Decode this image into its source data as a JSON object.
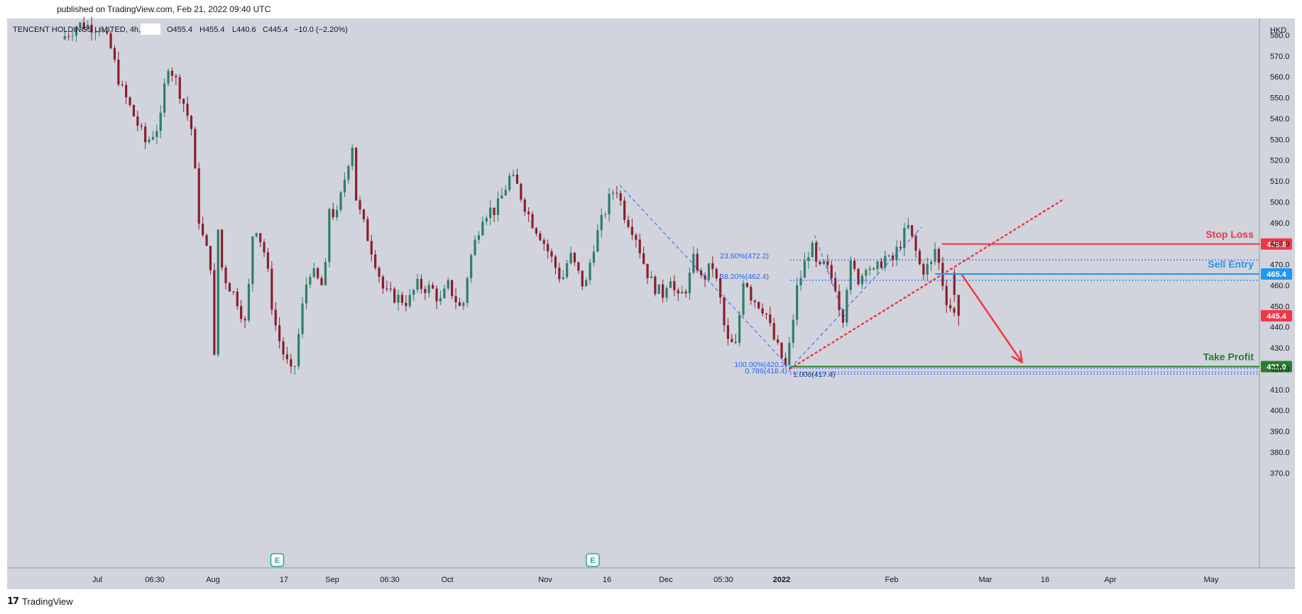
{
  "header": {
    "published": "published on TradingView.com, Feb 21, 2022 09:40 UTC"
  },
  "legend": {
    "symbol": "TENCENT HOLDINGS LIMITED, 4h,",
    "open": "O455.4",
    "high": "H455.4",
    "low": "L440.6",
    "close": "C445.4",
    "change": "−10.0 (−2.20%)"
  },
  "footer": {
    "brand": "TradingView",
    "logo": "tv-logo-icon"
  },
  "colors": {
    "background": "#d1d4dc",
    "up_candle": "#2e7d6a",
    "down_candle": "#8b1e2b",
    "stop_loss": "#f23645",
    "sell_entry": "#2196f3",
    "take_profit": "#26802a",
    "fib": "#2962ff",
    "price_label": "#f23645"
  },
  "chart_data": {
    "type": "candlestick",
    "title": "TENCENT HOLDINGS LIMITED, 4h",
    "currency": "HKD",
    "interval": "4h",
    "ylim": [
      364,
      588
    ],
    "y_ticks": [
      580.0,
      570.0,
      560.0,
      550.0,
      540.0,
      530.0,
      520.0,
      510.0,
      500.0,
      490.0,
      480.0,
      470.0,
      460.0,
      450.0,
      440.0,
      430.0,
      420.0,
      410.0,
      400.0,
      390.0,
      380.0,
      370.0
    ],
    "x_ticks": [
      "Jul",
      "06:30",
      "Aug",
      "17",
      "Sep",
      "06:30",
      "Oct",
      "Nov",
      "16",
      "Dec",
      "05:30",
      "2022",
      "Feb",
      "Mar",
      "16",
      "Apr",
      "May"
    ],
    "price_path": [
      {
        "date": "2021-06-25",
        "price": 578
      },
      {
        "date": "2021-06-28",
        "price": 585
      },
      {
        "date": "2021-07-02",
        "price": 584
      },
      {
        "date": "2021-07-05",
        "price": 575
      },
      {
        "date": "2021-07-08",
        "price": 555
      },
      {
        "date": "2021-07-12",
        "price": 540
      },
      {
        "date": "2021-07-15",
        "price": 528
      },
      {
        "date": "2021-07-19",
        "price": 538
      },
      {
        "date": "2021-07-21",
        "price": 567
      },
      {
        "date": "2021-07-23",
        "price": 560
      },
      {
        "date": "2021-07-26",
        "price": 545
      },
      {
        "date": "2021-07-28",
        "price": 533
      },
      {
        "date": "2021-07-29",
        "price": 505
      },
      {
        "date": "2021-07-30",
        "price": 488
      },
      {
        "date": "2021-08-02",
        "price": 470
      },
      {
        "date": "2021-08-03",
        "price": 422
      },
      {
        "date": "2021-08-04",
        "price": 492
      },
      {
        "date": "2021-08-05",
        "price": 466
      },
      {
        "date": "2021-08-09",
        "price": 452
      },
      {
        "date": "2021-08-11",
        "price": 440
      },
      {
        "date": "2021-08-13",
        "price": 492
      },
      {
        "date": "2021-08-16",
        "price": 474
      },
      {
        "date": "2021-08-18",
        "price": 445
      },
      {
        "date": "2021-08-20",
        "price": 430
      },
      {
        "date": "2021-08-23",
        "price": 415
      },
      {
        "date": "2021-08-25",
        "price": 445
      },
      {
        "date": "2021-08-27",
        "price": 468
      },
      {
        "date": "2021-08-31",
        "price": 458
      },
      {
        "date": "2021-09-01",
        "price": 498
      },
      {
        "date": "2021-09-03",
        "price": 492
      },
      {
        "date": "2021-09-06",
        "price": 520
      },
      {
        "date": "2021-09-07",
        "price": 528
      },
      {
        "date": "2021-09-08",
        "price": 500
      },
      {
        "date": "2021-09-10",
        "price": 488
      },
      {
        "date": "2021-09-13",
        "price": 470
      },
      {
        "date": "2021-09-15",
        "price": 456
      },
      {
        "date": "2021-09-17",
        "price": 455
      },
      {
        "date": "2021-09-21",
        "price": 452
      },
      {
        "date": "2021-09-23",
        "price": 460
      },
      {
        "date": "2021-09-27",
        "price": 458
      },
      {
        "date": "2021-09-29",
        "price": 452
      },
      {
        "date": "2021-10-01",
        "price": 460
      },
      {
        "date": "2021-10-05",
        "price": 447
      },
      {
        "date": "2021-10-07",
        "price": 470
      },
      {
        "date": "2021-10-11",
        "price": 494
      },
      {
        "date": "2021-10-13",
        "price": 496
      },
      {
        "date": "2021-10-15",
        "price": 496
      },
      {
        "date": "2021-10-19",
        "price": 512
      },
      {
        "date": "2021-10-21",
        "price": 508
      },
      {
        "date": "2021-10-25",
        "price": 492
      },
      {
        "date": "2021-10-28",
        "price": 484
      },
      {
        "date": "2021-11-01",
        "price": 470
      },
      {
        "date": "2021-11-03",
        "price": 462
      },
      {
        "date": "2021-11-05",
        "price": 475
      },
      {
        "date": "2021-11-09",
        "price": 458
      },
      {
        "date": "2021-11-11",
        "price": 478
      },
      {
        "date": "2021-11-15",
        "price": 500
      },
      {
        "date": "2021-11-17",
        "price": 508
      },
      {
        "date": "2021-11-19",
        "price": 495
      },
      {
        "date": "2021-11-22",
        "price": 485
      },
      {
        "date": "2021-11-24",
        "price": 472
      },
      {
        "date": "2021-11-26",
        "price": 462
      },
      {
        "date": "2021-11-29",
        "price": 455
      },
      {
        "date": "2021-12-01",
        "price": 466
      },
      {
        "date": "2021-12-03",
        "price": 452
      },
      {
        "date": "2021-12-06",
        "price": 460
      },
      {
        "date": "2021-12-08",
        "price": 474
      },
      {
        "date": "2021-12-10",
        "price": 462
      },
      {
        "date": "2021-12-13",
        "price": 470
      },
      {
        "date": "2021-12-15",
        "price": 456
      },
      {
        "date": "2021-12-16",
        "price": 445
      },
      {
        "date": "2021-12-17",
        "price": 433
      },
      {
        "date": "2021-12-20",
        "price": 430
      },
      {
        "date": "2021-12-21",
        "price": 452
      },
      {
        "date": "2021-12-22",
        "price": 466
      },
      {
        "date": "2021-12-24",
        "price": 455
      },
      {
        "date": "2021-12-28",
        "price": 448
      },
      {
        "date": "2021-12-30",
        "price": 436
      },
      {
        "date": "2022-01-03",
        "price": 420
      },
      {
        "date": "2022-01-04",
        "price": 432
      },
      {
        "date": "2022-01-06",
        "price": 458
      },
      {
        "date": "2022-01-10",
        "price": 480
      },
      {
        "date": "2022-01-12",
        "price": 466
      },
      {
        "date": "2022-01-14",
        "price": 470
      },
      {
        "date": "2022-01-17",
        "price": 460
      },
      {
        "date": "2022-01-19",
        "price": 443
      },
      {
        "date": "2022-01-21",
        "price": 470
      },
      {
        "date": "2022-01-24",
        "price": 462
      },
      {
        "date": "2022-01-26",
        "price": 472
      },
      {
        "date": "2022-01-28",
        "price": 465
      },
      {
        "date": "2022-01-31",
        "price": 474
      },
      {
        "date": "2022-02-02",
        "price": 470
      },
      {
        "date": "2022-02-04",
        "price": 478
      },
      {
        "date": "2022-02-07",
        "price": 488
      },
      {
        "date": "2022-02-09",
        "price": 478
      },
      {
        "date": "2022-02-11",
        "price": 467
      },
      {
        "date": "2022-02-14",
        "price": 470
      },
      {
        "date": "2022-02-15",
        "price": 478
      },
      {
        "date": "2022-02-16",
        "price": 472
      },
      {
        "date": "2022-02-17",
        "price": 465
      },
      {
        "date": "2022-02-18",
        "price": 455
      },
      {
        "date": "2022-02-21",
        "price": 445.4
      }
    ],
    "fibonacci_retracement": {
      "from_date": "2022-01-03",
      "to_date": "2022-02-10",
      "levels": [
        {
          "label": "23.60%(472.2)",
          "value": 472.2
        },
        {
          "label": "38.20%(462.4)",
          "value": 462.4
        },
        {
          "label": "100.00%(420.2)",
          "value": 420.2
        },
        {
          "label": "0.786(418.4)",
          "value": 418.4
        },
        {
          "label": "1.000(417.4)",
          "value": 417.4
        }
      ]
    },
    "trade_levels": [
      {
        "name": "Stop Loss",
        "value": 479.8,
        "label": "479.8"
      },
      {
        "name": "Sell Entry",
        "value": 465.4,
        "label": "465.4"
      },
      {
        "name": "Take Profit",
        "value": 421.0,
        "label": "421.0"
      }
    ],
    "last_price": {
      "value": 445.4,
      "label": "445.4"
    },
    "earnings_markers": [
      {
        "date": "2021-08-18",
        "label": "E"
      },
      {
        "date": "2021-11-10",
        "label": "E"
      }
    ],
    "arrow_projection": {
      "from_date": "2022-02-22",
      "from": 465,
      "to_date": "2022-03-10",
      "to": 421
    },
    "trendline": {
      "from_date": "2022-01-03",
      "from": 420,
      "to_date": "2022-03-20",
      "to": 501
    }
  }
}
